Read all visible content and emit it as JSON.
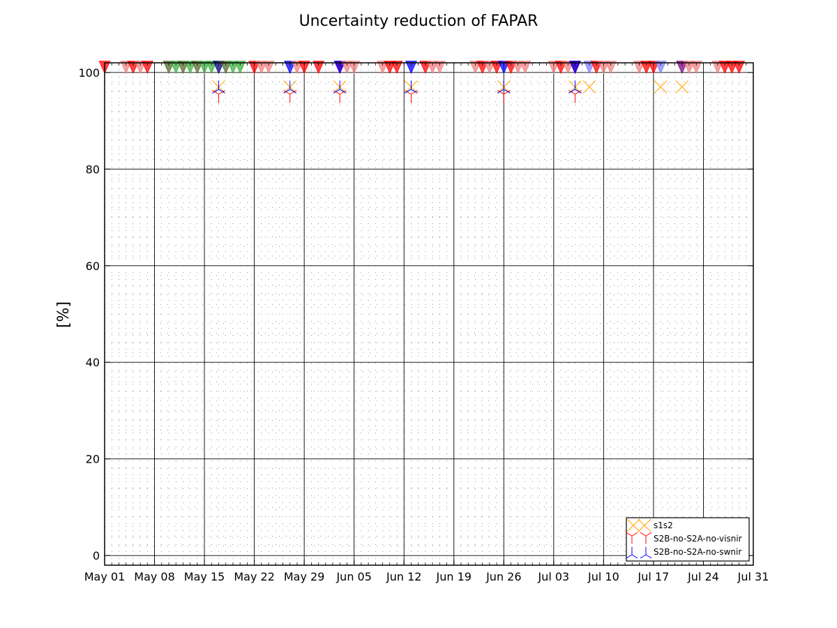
{
  "chart_data": {
    "type": "scatter",
    "title": "Uncertainty reduction of FAPAR",
    "xlabel": "",
    "ylabel": "[%]",
    "x_range": [
      "2017-05-01",
      "2017-07-31"
    ],
    "ylim": [
      -2,
      102
    ],
    "yticks": [
      0,
      20,
      40,
      60,
      80,
      100
    ],
    "ytick_labels": [
      "0",
      "20",
      "40",
      "60",
      "80",
      "100"
    ],
    "xticks": [
      "2017-05-01",
      "2017-05-08",
      "2017-05-15",
      "2017-05-22",
      "2017-05-29",
      "2017-06-05",
      "2017-06-12",
      "2017-06-19",
      "2017-06-26",
      "2017-07-03",
      "2017-07-10",
      "2017-07-17",
      "2017-07-24",
      "2017-07-31"
    ],
    "xtick_labels": [
      "May 01",
      "May 08",
      "May 15",
      "May 22",
      "May 29",
      "Jun 05",
      "Jun 12",
      "Jun 19",
      "Jun 26",
      "Jul 03",
      "Jul 10",
      "Jul 17",
      "Jul 24",
      "Jul 31"
    ],
    "grid": true,
    "legend_position": "lower-right",
    "colors": {
      "s1s2": "#ffa500",
      "visnir": "#ff0000",
      "swnir": "#0000ff",
      "red_marker": "#ff0000",
      "light_red_marker": "#f08080",
      "blue_marker": "#0000ff",
      "light_blue_marker": "#8080ff",
      "green_marker": "#3cb043",
      "dark_green_marker": "#556b2f",
      "navy_marker": "#000080",
      "purple_marker": "#800080"
    },
    "series": [
      {
        "name": "s1s2",
        "marker": "x",
        "color": "#ffa500",
        "x": [
          "2017-05-17",
          "2017-05-27",
          "2017-06-03",
          "2017-06-13",
          "2017-06-26",
          "2017-07-06",
          "2017-07-08",
          "2017-07-18",
          "2017-07-21"
        ],
        "y": [
          97,
          97,
          97,
          97,
          97,
          97,
          97,
          97,
          97
        ]
      },
      {
        "name": "S2B-no-S2A-no-visnir",
        "marker": "tri_down",
        "color": "#ff0000",
        "x": [
          "2017-05-17",
          "2017-05-27",
          "2017-06-03",
          "2017-06-13",
          "2017-06-26",
          "2017-07-06"
        ],
        "y": [
          95.5,
          95.5,
          95.5,
          95.5,
          95.5,
          95.5
        ]
      },
      {
        "name": "S2B-no-S2A-no-swnir",
        "marker": "tri_up",
        "color": "#0000ff",
        "x": [
          "2017-05-17",
          "2017-05-27",
          "2017-06-03",
          "2017-06-13",
          "2017-06-26",
          "2017-07-06"
        ],
        "y": [
          96.5,
          96.5,
          96.5,
          96.5,
          96.5,
          96.5
        ]
      }
    ],
    "top_markers": {
      "y": 100.5,
      "points": [
        {
          "x": "2017-05-01",
          "c": "red_marker"
        },
        {
          "x": "2017-05-04",
          "c": "light_red_marker"
        },
        {
          "x": "2017-05-05",
          "c": "red_marker"
        },
        {
          "x": "2017-05-06",
          "c": "light_red_marker"
        },
        {
          "x": "2017-05-07",
          "c": "red_marker"
        },
        {
          "x": "2017-05-10",
          "c": "dark_green_marker"
        },
        {
          "x": "2017-05-11",
          "c": "green_marker"
        },
        {
          "x": "2017-05-12",
          "c": "dark_green_marker"
        },
        {
          "x": "2017-05-13",
          "c": "green_marker"
        },
        {
          "x": "2017-05-14",
          "c": "dark_green_marker"
        },
        {
          "x": "2017-05-15",
          "c": "green_marker"
        },
        {
          "x": "2017-05-16",
          "c": "green_marker"
        },
        {
          "x": "2017-05-17",
          "c": "navy_marker"
        },
        {
          "x": "2017-05-18",
          "c": "dark_green_marker"
        },
        {
          "x": "2017-05-19",
          "c": "green_marker"
        },
        {
          "x": "2017-05-20",
          "c": "green_marker"
        },
        {
          "x": "2017-05-22",
          "c": "red_marker"
        },
        {
          "x": "2017-05-23",
          "c": "light_red_marker"
        },
        {
          "x": "2017-05-24",
          "c": "light_red_marker"
        },
        {
          "x": "2017-05-27",
          "c": "blue_marker"
        },
        {
          "x": "2017-05-28",
          "c": "light_red_marker"
        },
        {
          "x": "2017-05-29",
          "c": "red_marker"
        },
        {
          "x": "2017-05-31",
          "c": "red_marker"
        },
        {
          "x": "2017-06-03",
          "c": "red_marker"
        },
        {
          "x": "2017-06-03",
          "c": "blue_marker"
        },
        {
          "x": "2017-06-04",
          "c": "light_red_marker"
        },
        {
          "x": "2017-06-05",
          "c": "light_red_marker"
        },
        {
          "x": "2017-06-09",
          "c": "light_red_marker"
        },
        {
          "x": "2017-06-10",
          "c": "red_marker"
        },
        {
          "x": "2017-06-11",
          "c": "red_marker"
        },
        {
          "x": "2017-06-13",
          "c": "blue_marker"
        },
        {
          "x": "2017-06-15",
          "c": "red_marker"
        },
        {
          "x": "2017-06-16",
          "c": "light_red_marker"
        },
        {
          "x": "2017-06-17",
          "c": "light_red_marker"
        },
        {
          "x": "2017-06-22",
          "c": "light_red_marker"
        },
        {
          "x": "2017-06-23",
          "c": "red_marker"
        },
        {
          "x": "2017-06-24",
          "c": "light_red_marker"
        },
        {
          "x": "2017-06-25",
          "c": "red_marker"
        },
        {
          "x": "2017-06-26",
          "c": "blue_marker"
        },
        {
          "x": "2017-06-27",
          "c": "red_marker"
        },
        {
          "x": "2017-06-28",
          "c": "light_red_marker"
        },
        {
          "x": "2017-06-29",
          "c": "light_red_marker"
        },
        {
          "x": "2017-07-03",
          "c": "light_red_marker"
        },
        {
          "x": "2017-07-04",
          "c": "red_marker"
        },
        {
          "x": "2017-07-05",
          "c": "light_red_marker"
        },
        {
          "x": "2017-07-06",
          "c": "red_marker"
        },
        {
          "x": "2017-07-06",
          "c": "blue_marker"
        },
        {
          "x": "2017-07-08",
          "c": "light_blue_marker"
        },
        {
          "x": "2017-07-09",
          "c": "red_marker"
        },
        {
          "x": "2017-07-10",
          "c": "light_red_marker"
        },
        {
          "x": "2017-07-11",
          "c": "light_red_marker"
        },
        {
          "x": "2017-07-15",
          "c": "light_red_marker"
        },
        {
          "x": "2017-07-16",
          "c": "red_marker"
        },
        {
          "x": "2017-07-17",
          "c": "red_marker"
        },
        {
          "x": "2017-07-18",
          "c": "light_blue_marker"
        },
        {
          "x": "2017-07-21",
          "c": "purple_marker"
        },
        {
          "x": "2017-07-22",
          "c": "light_red_marker"
        },
        {
          "x": "2017-07-23",
          "c": "light_red_marker"
        },
        {
          "x": "2017-07-26",
          "c": "light_red_marker"
        },
        {
          "x": "2017-07-27",
          "c": "red_marker"
        },
        {
          "x": "2017-07-28",
          "c": "red_marker"
        },
        {
          "x": "2017-07-29",
          "c": "red_marker"
        }
      ]
    }
  }
}
